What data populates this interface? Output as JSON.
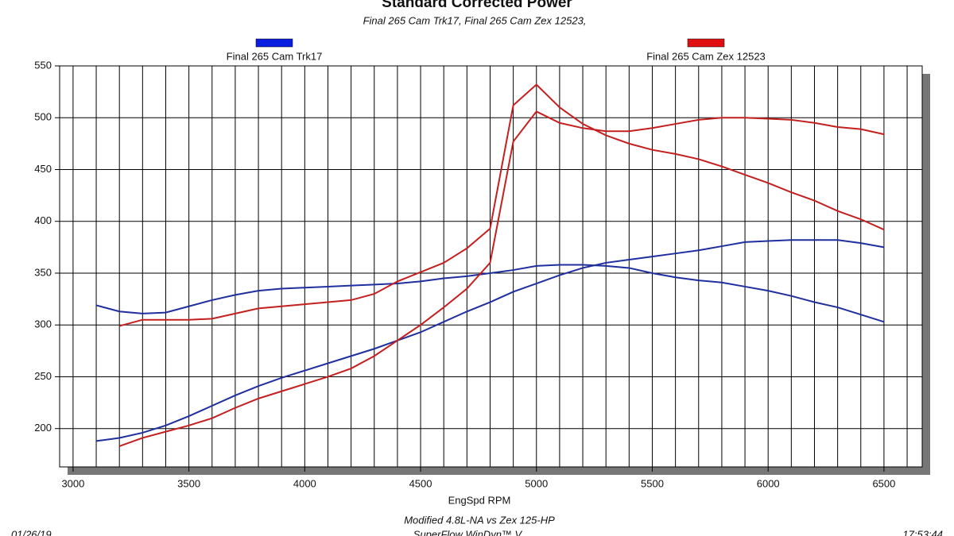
{
  "chart_data": {
    "type": "line",
    "title": "Standard Corrected Power",
    "subtitle": "Final 265 Cam Trk17, Final 265 Cam Zex 12523,",
    "x_label": "EngSpd RPM",
    "footer": "Modified 4.8L-NA vs Zex 125-HP",
    "footer2": "SuperFlow WinDyn™ V",
    "date": "01/26/19",
    "time": "17:53:44",
    "x": [
      3100,
      3200,
      3300,
      3400,
      3500,
      3600,
      3700,
      3800,
      3900,
      4000,
      4100,
      4200,
      4300,
      4400,
      4500,
      4600,
      4700,
      4800,
      4900,
      5000,
      5100,
      5200,
      5300,
      5400,
      5500,
      5600,
      5700,
      5800,
      5900,
      6000,
      6100,
      6200,
      6300,
      6400,
      6500
    ],
    "series": [
      {
        "name": "Final 265 Cam Trk17",
        "color": "#1f2f9e",
        "legend_color": "#0a1ee0",
        "curves": [
          [
            188,
            191,
            196,
            203,
            212,
            222,
            232,
            241,
            249,
            256,
            263,
            270,
            277,
            285,
            293,
            303,
            313,
            322,
            332,
            340,
            348,
            355,
            360,
            363,
            366,
            369,
            372,
            376,
            380,
            381,
            382,
            382,
            382,
            379,
            375
          ],
          [
            319,
            313,
            311,
            312,
            318,
            324,
            329,
            333,
            335,
            336,
            337,
            338,
            339,
            340,
            342,
            345,
            347,
            350,
            353,
            357,
            358,
            358,
            357,
            355,
            350,
            346,
            343,
            341,
            337,
            333,
            328,
            322,
            317,
            310,
            303
          ]
        ]
      },
      {
        "name": "Final 265 Cam Zex 12523",
        "color": "#c42020",
        "legend_color": "#e01010",
        "curves": [
          [
            null,
            183,
            191,
            197,
            203,
            210,
            220,
            229,
            236,
            243,
            250,
            258,
            270,
            285,
            300,
            317,
            335,
            360,
            477,
            506,
            495,
            490,
            487,
            487,
            490,
            494,
            498,
            500,
            500,
            499,
            498,
            495,
            491,
            489,
            484
          ],
          [
            null,
            299,
            305,
            305,
            305,
            306,
            311,
            316,
            318,
            320,
            322,
            324,
            330,
            342,
            351,
            360,
            374,
            393,
            512,
            532,
            510,
            494,
            483,
            475,
            469,
            465,
            460,
            453,
            445,
            437,
            428,
            420,
            410,
            402,
            392
          ]
        ]
      }
    ],
    "xlim": [
      2942,
      6665
    ],
    "xticks": [
      3000,
      3500,
      4000,
      4500,
      5000,
      5500,
      6000,
      6500
    ],
    "xgrid_step": 100,
    "ylim": [
      163,
      550
    ],
    "yticks": [
      200,
      250,
      300,
      350,
      400,
      450,
      500,
      550
    ],
    "grid": true
  }
}
